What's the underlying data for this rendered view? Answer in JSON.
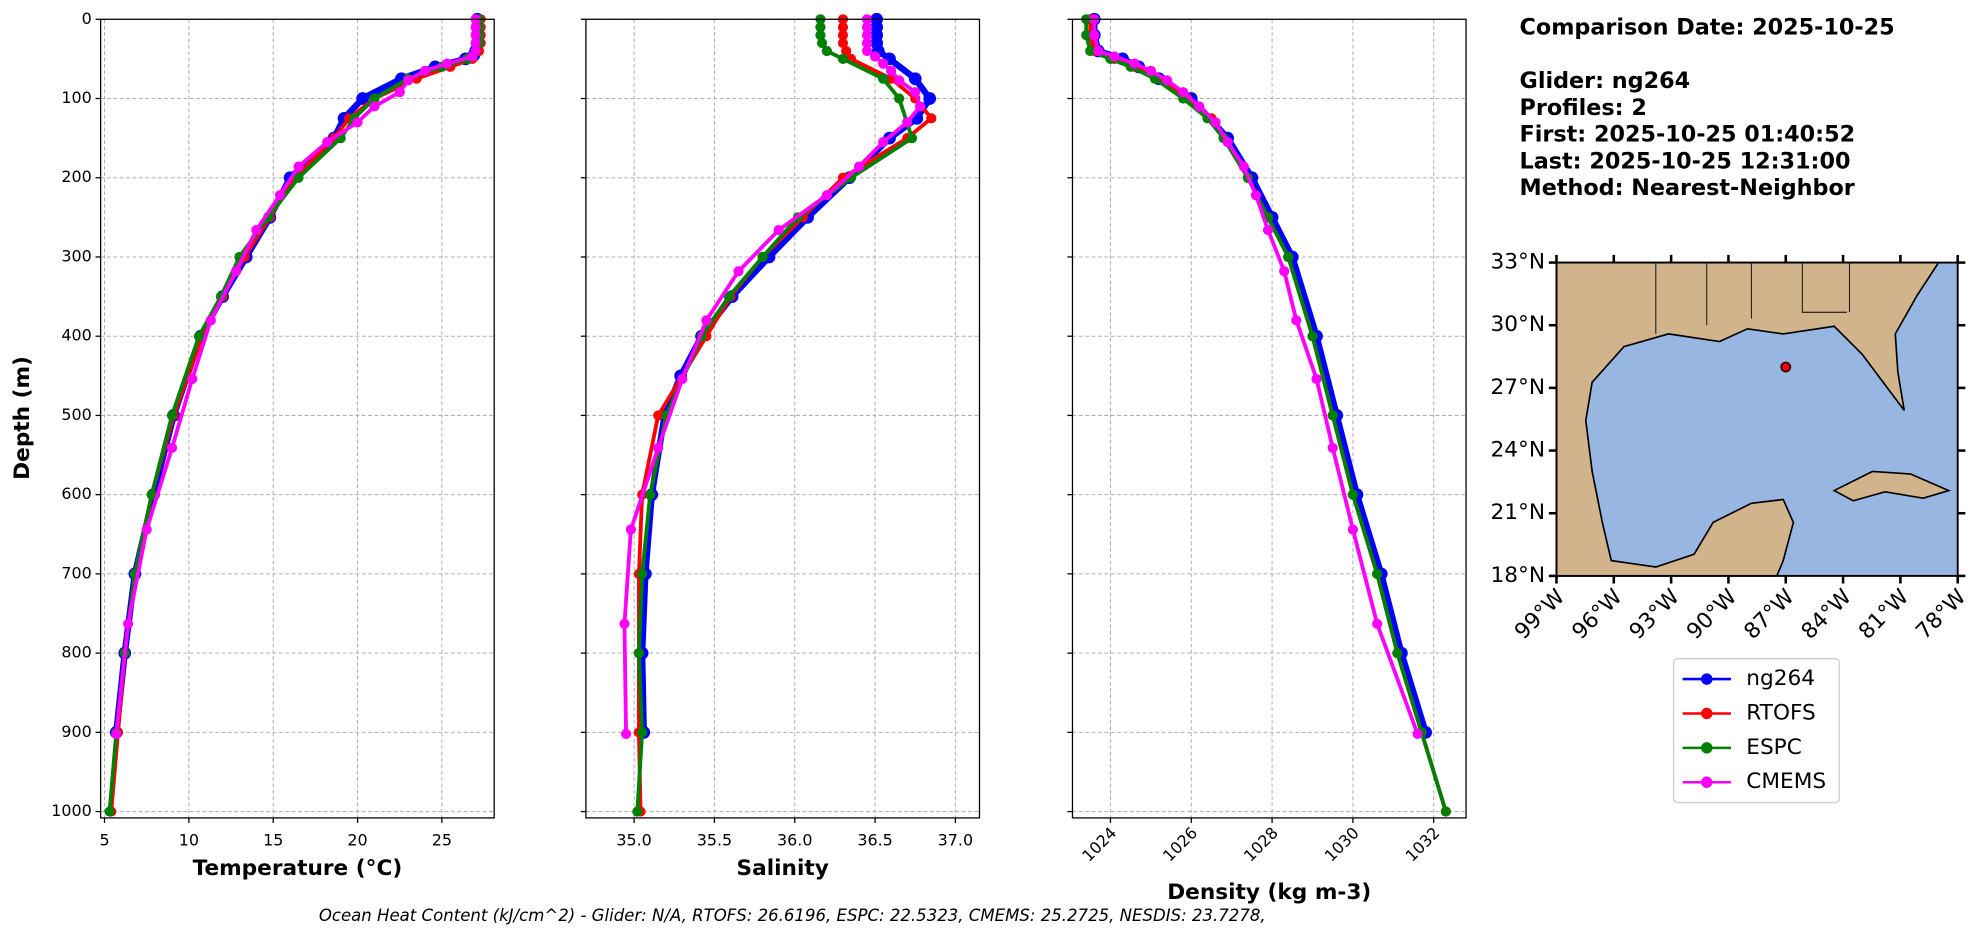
{
  "header": {
    "lines": [
      "Comparison Date: 2025-10-25",
      "Glider: ng264",
      "Profiles: 2",
      "First: 2025-10-25 01:40:52",
      "Last: 2025-10-25 12:31:00",
      "Method: Nearest-Neighbor"
    ]
  },
  "footer": "Ocean Heat Content (kJ/cm^2) - Glider: N/A,  RTOFS: 26.6196,  ESPC: 22.5323,  CMEMS: 25.2725,  NESDIS: 23.7278,",
  "chart_data": [
    {
      "type": "line",
      "xlabel": "Temperature (°C)",
      "ylabel": "Depth (m)",
      "xlim": [
        4.77,
        28.1
      ],
      "ylim": [
        1008,
        0
      ],
      "xticks": [
        5,
        10,
        15,
        20,
        25
      ],
      "yticks": [
        0,
        100,
        200,
        300,
        400,
        500,
        600,
        700,
        800,
        900,
        1000
      ],
      "ytick_labels": true,
      "grid": true,
      "series": [
        {
          "name": "ng264",
          "color": "#0000ff",
          "y": [
            0,
            10,
            20,
            30,
            40,
            45,
            50,
            60,
            75,
            100,
            125,
            150,
            200,
            250,
            300,
            350,
            400,
            500,
            600,
            700,
            800,
            900
          ],
          "x": [
            27.1,
            27.1,
            27.1,
            27.1,
            27.0,
            26.9,
            26.4,
            24.6,
            22.6,
            20.3,
            19.2,
            18.6,
            16.0,
            14.8,
            13.4,
            12.0,
            10.7,
            9.1,
            7.9,
            6.8,
            6.2,
            5.7
          ]
        },
        {
          "name": "RTOFS",
          "color": "#ff0000",
          "y": [
            0,
            10,
            20,
            30,
            40,
            50,
            60,
            75,
            100,
            125,
            150,
            200,
            250,
            300,
            350,
            400,
            500,
            600,
            700,
            800,
            900,
            1000
          ],
          "x": [
            27.3,
            27.3,
            27.3,
            27.3,
            27.2,
            26.8,
            25.5,
            23.5,
            21.0,
            19.5,
            18.6,
            16.3,
            14.8,
            13.3,
            12.0,
            10.8,
            9.1,
            7.8,
            6.8,
            6.2,
            5.8,
            5.4
          ]
        },
        {
          "name": "ESPC",
          "color": "#008000",
          "y": [
            0,
            10,
            20,
            30,
            40,
            50,
            60,
            75,
            100,
            125,
            150,
            200,
            250,
            300,
            350,
            400,
            500,
            600,
            700,
            800,
            900,
            1000
          ],
          "x": [
            27.2,
            27.2,
            27.2,
            27.2,
            27.0,
            26.5,
            25.0,
            23.0,
            21.0,
            19.8,
            19.0,
            16.5,
            14.7,
            13.0,
            11.9,
            10.6,
            9.0,
            7.8,
            6.8,
            6.2,
            5.7,
            5.3
          ]
        },
        {
          "name": "CMEMS",
          "color": "#ff00ff",
          "y": [
            0,
            10,
            20,
            30,
            40,
            47,
            56,
            65,
            77,
            92,
            110,
            130,
            155,
            186,
            222,
            266,
            318,
            380,
            454,
            541,
            644,
            763,
            902
          ],
          "x": [
            27.0,
            27.0,
            27.0,
            27.0,
            27.0,
            26.8,
            25.3,
            24.0,
            23.0,
            22.5,
            21.0,
            20.0,
            18.2,
            16.5,
            15.4,
            14.0,
            12.8,
            11.3,
            10.2,
            9.0,
            7.5,
            6.4,
            5.7
          ]
        }
      ]
    },
    {
      "type": "line",
      "xlabel": "Salinity",
      "xlim": [
        34.7,
        37.15
      ],
      "ylim": [
        1008,
        0
      ],
      "xticks": [
        {
          "value": 35,
          "label": "35.0"
        },
        35.5,
        {
          "value": 36,
          "label": "36.0"
        },
        36.5,
        {
          "value": 37,
          "label": "37.0"
        }
      ],
      "yticks": [
        0,
        100,
        200,
        300,
        400,
        500,
        600,
        700,
        800,
        900,
        1000
      ],
      "ytick_labels": false,
      "grid": true,
      "series": [
        {
          "name": "ng264",
          "color": "#0000ff",
          "y": [
            0,
            10,
            20,
            30,
            40,
            50,
            75,
            100,
            125,
            150,
            200,
            250,
            300,
            350,
            400,
            450,
            500,
            600,
            700,
            800,
            900
          ],
          "x": [
            36.51,
            36.51,
            36.51,
            36.51,
            36.52,
            36.59,
            36.75,
            36.84,
            36.76,
            36.59,
            36.34,
            36.08,
            35.84,
            35.61,
            35.42,
            35.29,
            35.19,
            35.11,
            35.07,
            35.05,
            35.06
          ]
        },
        {
          "name": "RTOFS",
          "color": "#ff0000",
          "y": [
            0,
            10,
            20,
            30,
            40,
            50,
            75,
            100,
            125,
            150,
            200,
            250,
            300,
            350,
            400,
            500,
            600,
            700,
            800,
            900,
            1000
          ],
          "x": [
            36.3,
            36.3,
            36.3,
            36.3,
            36.32,
            36.35,
            36.6,
            36.75,
            36.85,
            36.7,
            36.3,
            36.05,
            35.8,
            35.6,
            35.45,
            35.15,
            35.05,
            35.03,
            35.03,
            35.03,
            35.04
          ]
        },
        {
          "name": "ESPC",
          "color": "#008000",
          "y": [
            0,
            10,
            20,
            30,
            40,
            50,
            75,
            100,
            150,
            200,
            250,
            300,
            350,
            400,
            500,
            600,
            700,
            800,
            900,
            1000
          ],
          "x": [
            36.16,
            36.16,
            36.16,
            36.17,
            36.2,
            36.3,
            36.55,
            36.65,
            36.73,
            36.35,
            36.02,
            35.8,
            35.59,
            35.42,
            35.2,
            35.1,
            35.05,
            35.03,
            35.05,
            35.02
          ]
        },
        {
          "name": "CMEMS",
          "color": "#ff00ff",
          "y": [
            0,
            10,
            20,
            30,
            40,
            47,
            56,
            65,
            77,
            92,
            110,
            130,
            155,
            186,
            222,
            266,
            318,
            380,
            454,
            541,
            644,
            763,
            902
          ],
          "x": [
            36.45,
            36.45,
            36.45,
            36.45,
            36.45,
            36.5,
            36.55,
            36.6,
            36.65,
            36.75,
            36.78,
            36.7,
            36.55,
            36.4,
            36.2,
            35.9,
            35.65,
            35.45,
            35.3,
            35.15,
            34.98,
            34.94,
            34.95
          ]
        }
      ]
    },
    {
      "type": "line",
      "xlabel": "Density (kg m-3)",
      "xlim": [
        1023.06,
        1032.8
      ],
      "ylim": [
        1008,
        0
      ],
      "xticks": [
        1024,
        1026,
        1028,
        1030,
        1032
      ],
      "xtick_rotation": 45,
      "yticks": [
        0,
        100,
        200,
        300,
        400,
        500,
        600,
        700,
        800,
        900,
        1000
      ],
      "ytick_labels": false,
      "grid": true,
      "series": [
        {
          "name": "ng264",
          "color": "#0000ff",
          "y": [
            0,
            20,
            40,
            50,
            60,
            75,
            100,
            150,
            200,
            250,
            300,
            400,
            500,
            600,
            700,
            800,
            900
          ],
          "x": [
            1023.6,
            1023.6,
            1023.7,
            1024.3,
            1024.7,
            1025.2,
            1026.0,
            1026.9,
            1027.5,
            1028.0,
            1028.5,
            1029.1,
            1029.6,
            1030.1,
            1030.7,
            1031.2,
            1031.8
          ]
        },
        {
          "name": "RTOFS",
          "color": "#ff0000",
          "y": [
            0,
            20,
            40,
            50,
            60,
            75,
            100,
            125,
            150,
            200,
            250,
            300,
            400,
            500,
            600,
            700,
            800,
            900,
            1000
          ],
          "x": [
            1023.5,
            1023.5,
            1023.6,
            1024.1,
            1024.6,
            1025.2,
            1025.9,
            1026.5,
            1026.8,
            1027.4,
            1027.9,
            1028.4,
            1029.0,
            1029.5,
            1030.0,
            1030.6,
            1031.1,
            1031.7,
            1032.3
          ]
        },
        {
          "name": "ESPC",
          "color": "#008000",
          "y": [
            0,
            20,
            40,
            50,
            60,
            75,
            100,
            125,
            150,
            200,
            250,
            300,
            400,
            500,
            600,
            700,
            800,
            900,
            1000
          ],
          "x": [
            1023.4,
            1023.4,
            1023.5,
            1024.0,
            1024.5,
            1025.1,
            1025.8,
            1026.4,
            1026.8,
            1027.4,
            1027.9,
            1028.4,
            1029.0,
            1029.5,
            1030.0,
            1030.6,
            1031.1,
            1031.7,
            1032.3
          ]
        },
        {
          "name": "CMEMS",
          "color": "#ff00ff",
          "y": [
            0,
            20,
            40,
            47,
            56,
            65,
            77,
            92,
            110,
            130,
            155,
            186,
            222,
            266,
            318,
            380,
            454,
            541,
            644,
            763,
            902
          ],
          "x": [
            1023.6,
            1023.6,
            1023.7,
            1024.1,
            1024.6,
            1025.0,
            1025.4,
            1025.8,
            1026.2,
            1026.6,
            1026.9,
            1027.3,
            1027.6,
            1027.9,
            1028.3,
            1028.6,
            1029.1,
            1029.5,
            1030.0,
            1030.6,
            1031.6
          ]
        }
      ]
    },
    {
      "type": "map",
      "xlim": [
        -99,
        -78
      ],
      "ylim": [
        18,
        33
      ],
      "xticks": [
        {
          "value": -99,
          "label": "99°W"
        },
        {
          "value": -96,
          "label": "96°W"
        },
        {
          "value": -93,
          "label": "93°W"
        },
        {
          "value": -90,
          "label": "90°W"
        },
        {
          "value": -87,
          "label": "87°W"
        },
        {
          "value": -84,
          "label": "84°W"
        },
        {
          "value": -81,
          "label": "81°W"
        },
        {
          "value": -78,
          "label": "78°W"
        }
      ],
      "yticks": [
        {
          "value": 18,
          "label": "18°N"
        },
        {
          "value": 21,
          "label": "21°N"
        },
        {
          "value": 24,
          "label": "24°N"
        },
        {
          "value": 27,
          "label": "27°N"
        },
        {
          "value": 30,
          "label": "30°N"
        },
        {
          "value": 33,
          "label": "33°N"
        }
      ],
      "points": [
        {
          "lon": -87.0,
          "lat": 28.0,
          "color": "#ff0000"
        }
      ]
    }
  ]
}
